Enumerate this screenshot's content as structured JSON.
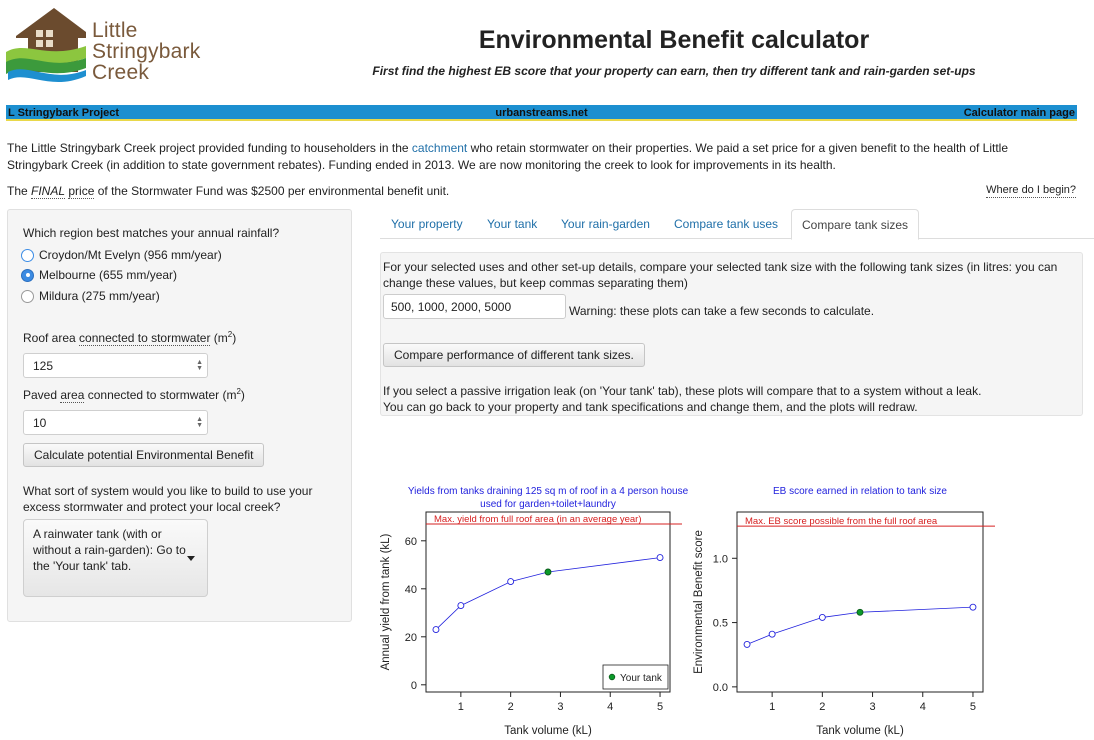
{
  "logo": {
    "line1": "Little",
    "line2": "Stringybark",
    "line3": "Creek"
  },
  "header": {
    "title": "Environmental Benefit calculator",
    "subtitle": "First find the highest EB score that your property can earn, then try different tank and rain-garden set-ups"
  },
  "nav": {
    "left": "L Stringybark Project",
    "center": "urbanstreams.net",
    "right": "Calculator main page"
  },
  "intro": {
    "part1": "The Little Stringybark Creek project provided funding to householders in the ",
    "catchment_link": "catchment",
    "part2": " who retain stormwater on their properties. We paid a set price for a given benefit to the health of Little Stringybark Creek (in addition to state government rebates). Funding ended in 2013. We are now monitoring the creek to look for improvements in its health."
  },
  "final": {
    "prefix": "The ",
    "final_word": "FINAL",
    "price_word": "price",
    "suffix": " of the Stormwater Fund was $2500 per environmental benefit unit."
  },
  "where_link": "Where do I begin?",
  "sidebar": {
    "rain_question": "Which region best matches your annual rainfall?",
    "regions": [
      "Croydon/Mt Evelyn (956 mm/year)",
      "Melbourne (655 mm/year)",
      "Mildura (275 mm/year)"
    ],
    "selected_region": 1,
    "roof_label_a": "Roof area ",
    "roof_label_b": "connected to stormwater",
    "roof_label_c": " (m",
    "sup2": "2",
    "roof_label_d": ")",
    "roof_value": "125",
    "paved_label_a": "Paved ",
    "paved_label_b": "area",
    "paved_label_c": " connected to stormwater (m",
    "paved_label_d": ")",
    "paved_value": "10",
    "calc_button": "Calculate potential Environmental Benefit",
    "system_question": "What sort of system would you like to build to use your excess stormwater and protect your local creek?",
    "system_select": "A rainwater tank (with or without a rain-garden): Go to the 'Your tank' tab."
  },
  "tabs": [
    "Your property",
    "Your tank",
    "Your rain-garden",
    "Compare tank uses",
    "Compare tank sizes"
  ],
  "active_tab": 4,
  "compare": {
    "instruction": "For your selected uses and other set-up details, compare your selected tank size with the following tank sizes (in litres: you can change these values, but keep commas separating them)",
    "sizes_value": "500, 1000, 2000, 5000",
    "warning": "Warning: these plots can take a few seconds to calculate.",
    "compare_button": "Compare performance of different tank sizes.",
    "note1": "If you select a passive irrigation leak (on 'Your tank' tab), these plots will compare that to a system without a leak.",
    "note2": "You can go back to your property and tank specifications and change them, and the plots will redraw."
  },
  "colors": {
    "series": "#2222dd",
    "selected": "#0b9a2a",
    "max_line": "#d62020",
    "nav_bg": "#1c8fd0",
    "link": "#1f6fa8"
  },
  "chart_data": [
    {
      "type": "line",
      "title": "Yields from tanks draining 125 sq m of roof in a 4 person house",
      "subtitle": "used for garden+toilet+laundry",
      "xlabel": "Tank volume (kL)",
      "ylabel": "Annual yield from tank (kL)",
      "x": [
        0.5,
        1,
        2,
        2.75,
        5
      ],
      "values": [
        23,
        33,
        43,
        47,
        53
      ],
      "selected_index": 3,
      "max_line": {
        "value": 67,
        "label": "Max. yield from full roof area (in an average year)"
      },
      "xlim": [
        0.3,
        5.2
      ],
      "ylim": [
        -3,
        72
      ],
      "xticks": [
        1,
        2,
        3,
        4,
        5
      ],
      "yticks": [
        0,
        20,
        40,
        60
      ],
      "legend": {
        "label": "Your tank",
        "position": "bottom-right"
      }
    },
    {
      "type": "line",
      "title": "EB score earned in relation to tank size",
      "xlabel": "Tank volume (kL)",
      "ylabel": "Environmental Benefit score",
      "x": [
        0.5,
        1,
        2,
        2.75,
        5
      ],
      "values": [
        0.33,
        0.41,
        0.54,
        0.58,
        0.62
      ],
      "selected_index": 3,
      "max_line": {
        "value": 1.25,
        "label": "Max. EB score possible from the full roof area"
      },
      "xlim": [
        0.3,
        5.2
      ],
      "ylim": [
        -0.04,
        1.36
      ],
      "xticks": [
        1,
        2,
        3,
        4,
        5
      ],
      "yticks": [
        0.0,
        0.5,
        1.0
      ]
    }
  ]
}
